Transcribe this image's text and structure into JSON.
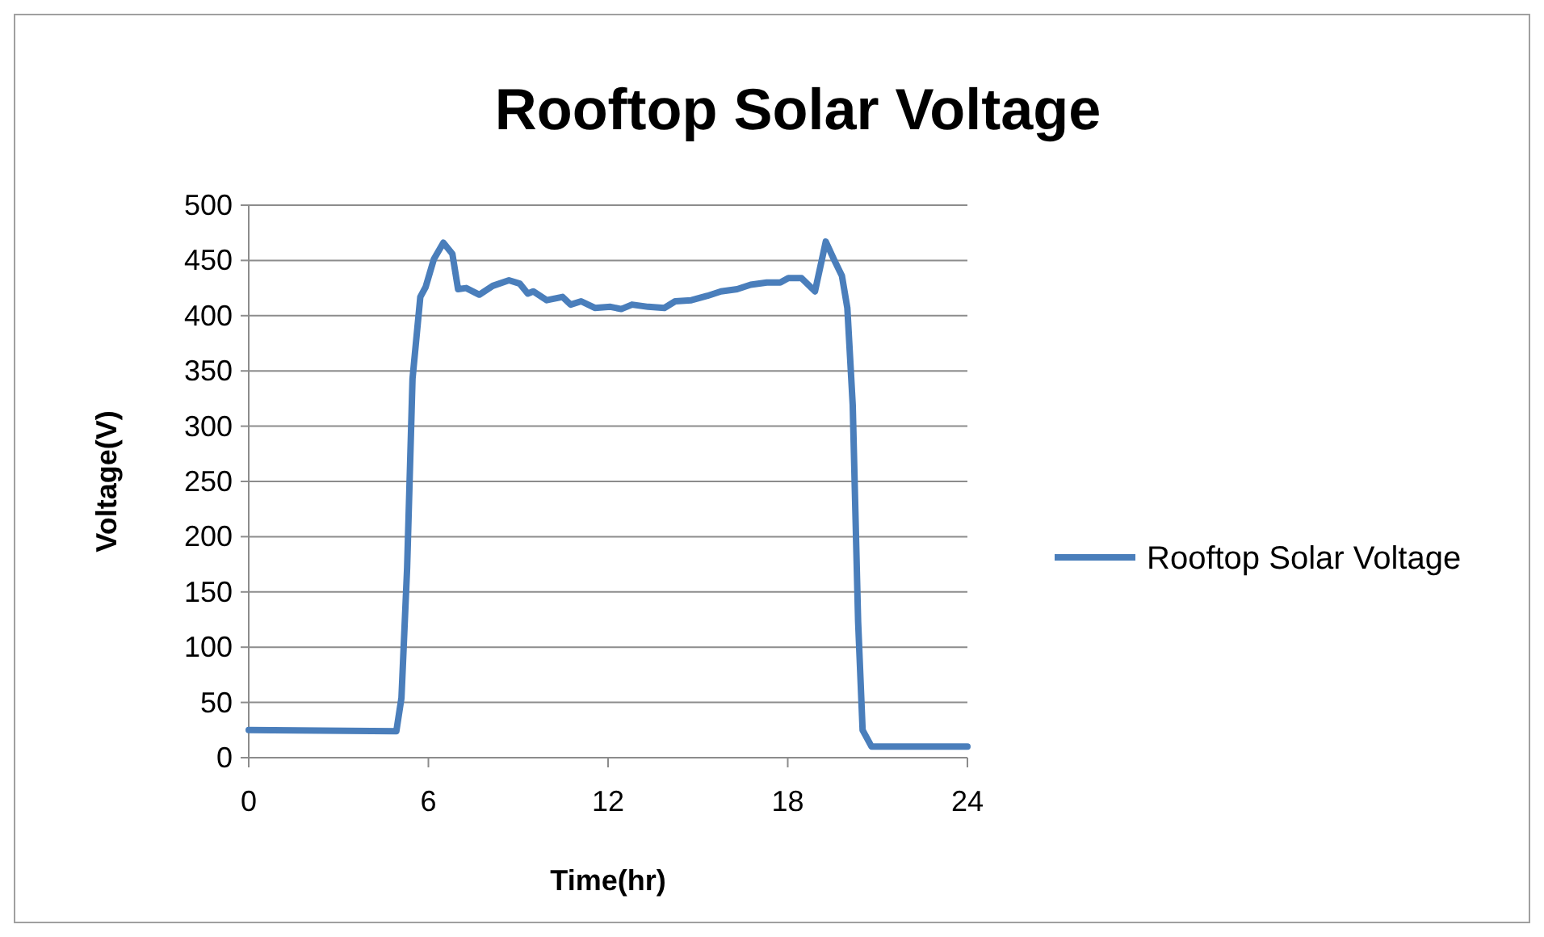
{
  "chart_data": {
    "type": "line",
    "title": "Rooftop Solar Voltage",
    "xlabel": "Time(hr)",
    "ylabel": "Voltage(V)",
    "xlim": [
      0,
      24
    ],
    "xticks": [
      0,
      6,
      12,
      18,
      24
    ],
    "ylim": [
      0,
      500
    ],
    "yticks": [
      0,
      50,
      100,
      150,
      200,
      250,
      300,
      350,
      400,
      450,
      500
    ],
    "grid": "y",
    "legend": "right",
    "series": [
      {
        "name": "Rooftop Solar Voltage",
        "color": "#4a7ebb",
        "x": [
          0,
          4.93,
          5.1,
          5.29,
          5.47,
          5.73,
          5.91,
          6.18,
          6.5,
          6.8,
          6.99,
          7.26,
          7.7,
          8.15,
          8.69,
          9.05,
          9.32,
          9.5,
          9.95,
          10.48,
          10.75,
          11.1,
          11.56,
          12.08,
          12.44,
          12.8,
          13.34,
          13.88,
          14.24,
          14.78,
          15.32,
          15.77,
          16.31,
          16.76,
          17.3,
          17.75,
          18.02,
          18.46,
          18.91,
          19.27,
          19.54,
          19.81,
          19.99,
          20.17,
          20.35,
          20.5,
          20.8,
          24
        ],
        "values": [
          25,
          24,
          54,
          172,
          343,
          417,
          426,
          451,
          466,
          456,
          424,
          425,
          419,
          427,
          432,
          429,
          420,
          422,
          414,
          417,
          410,
          413,
          407,
          408,
          406,
          410,
          408,
          407,
          413,
          414,
          418,
          422,
          424,
          428,
          430,
          430,
          434,
          434,
          422,
          467,
          451,
          436,
          407,
          319,
          123,
          25,
          10,
          10
        ]
      }
    ]
  }
}
